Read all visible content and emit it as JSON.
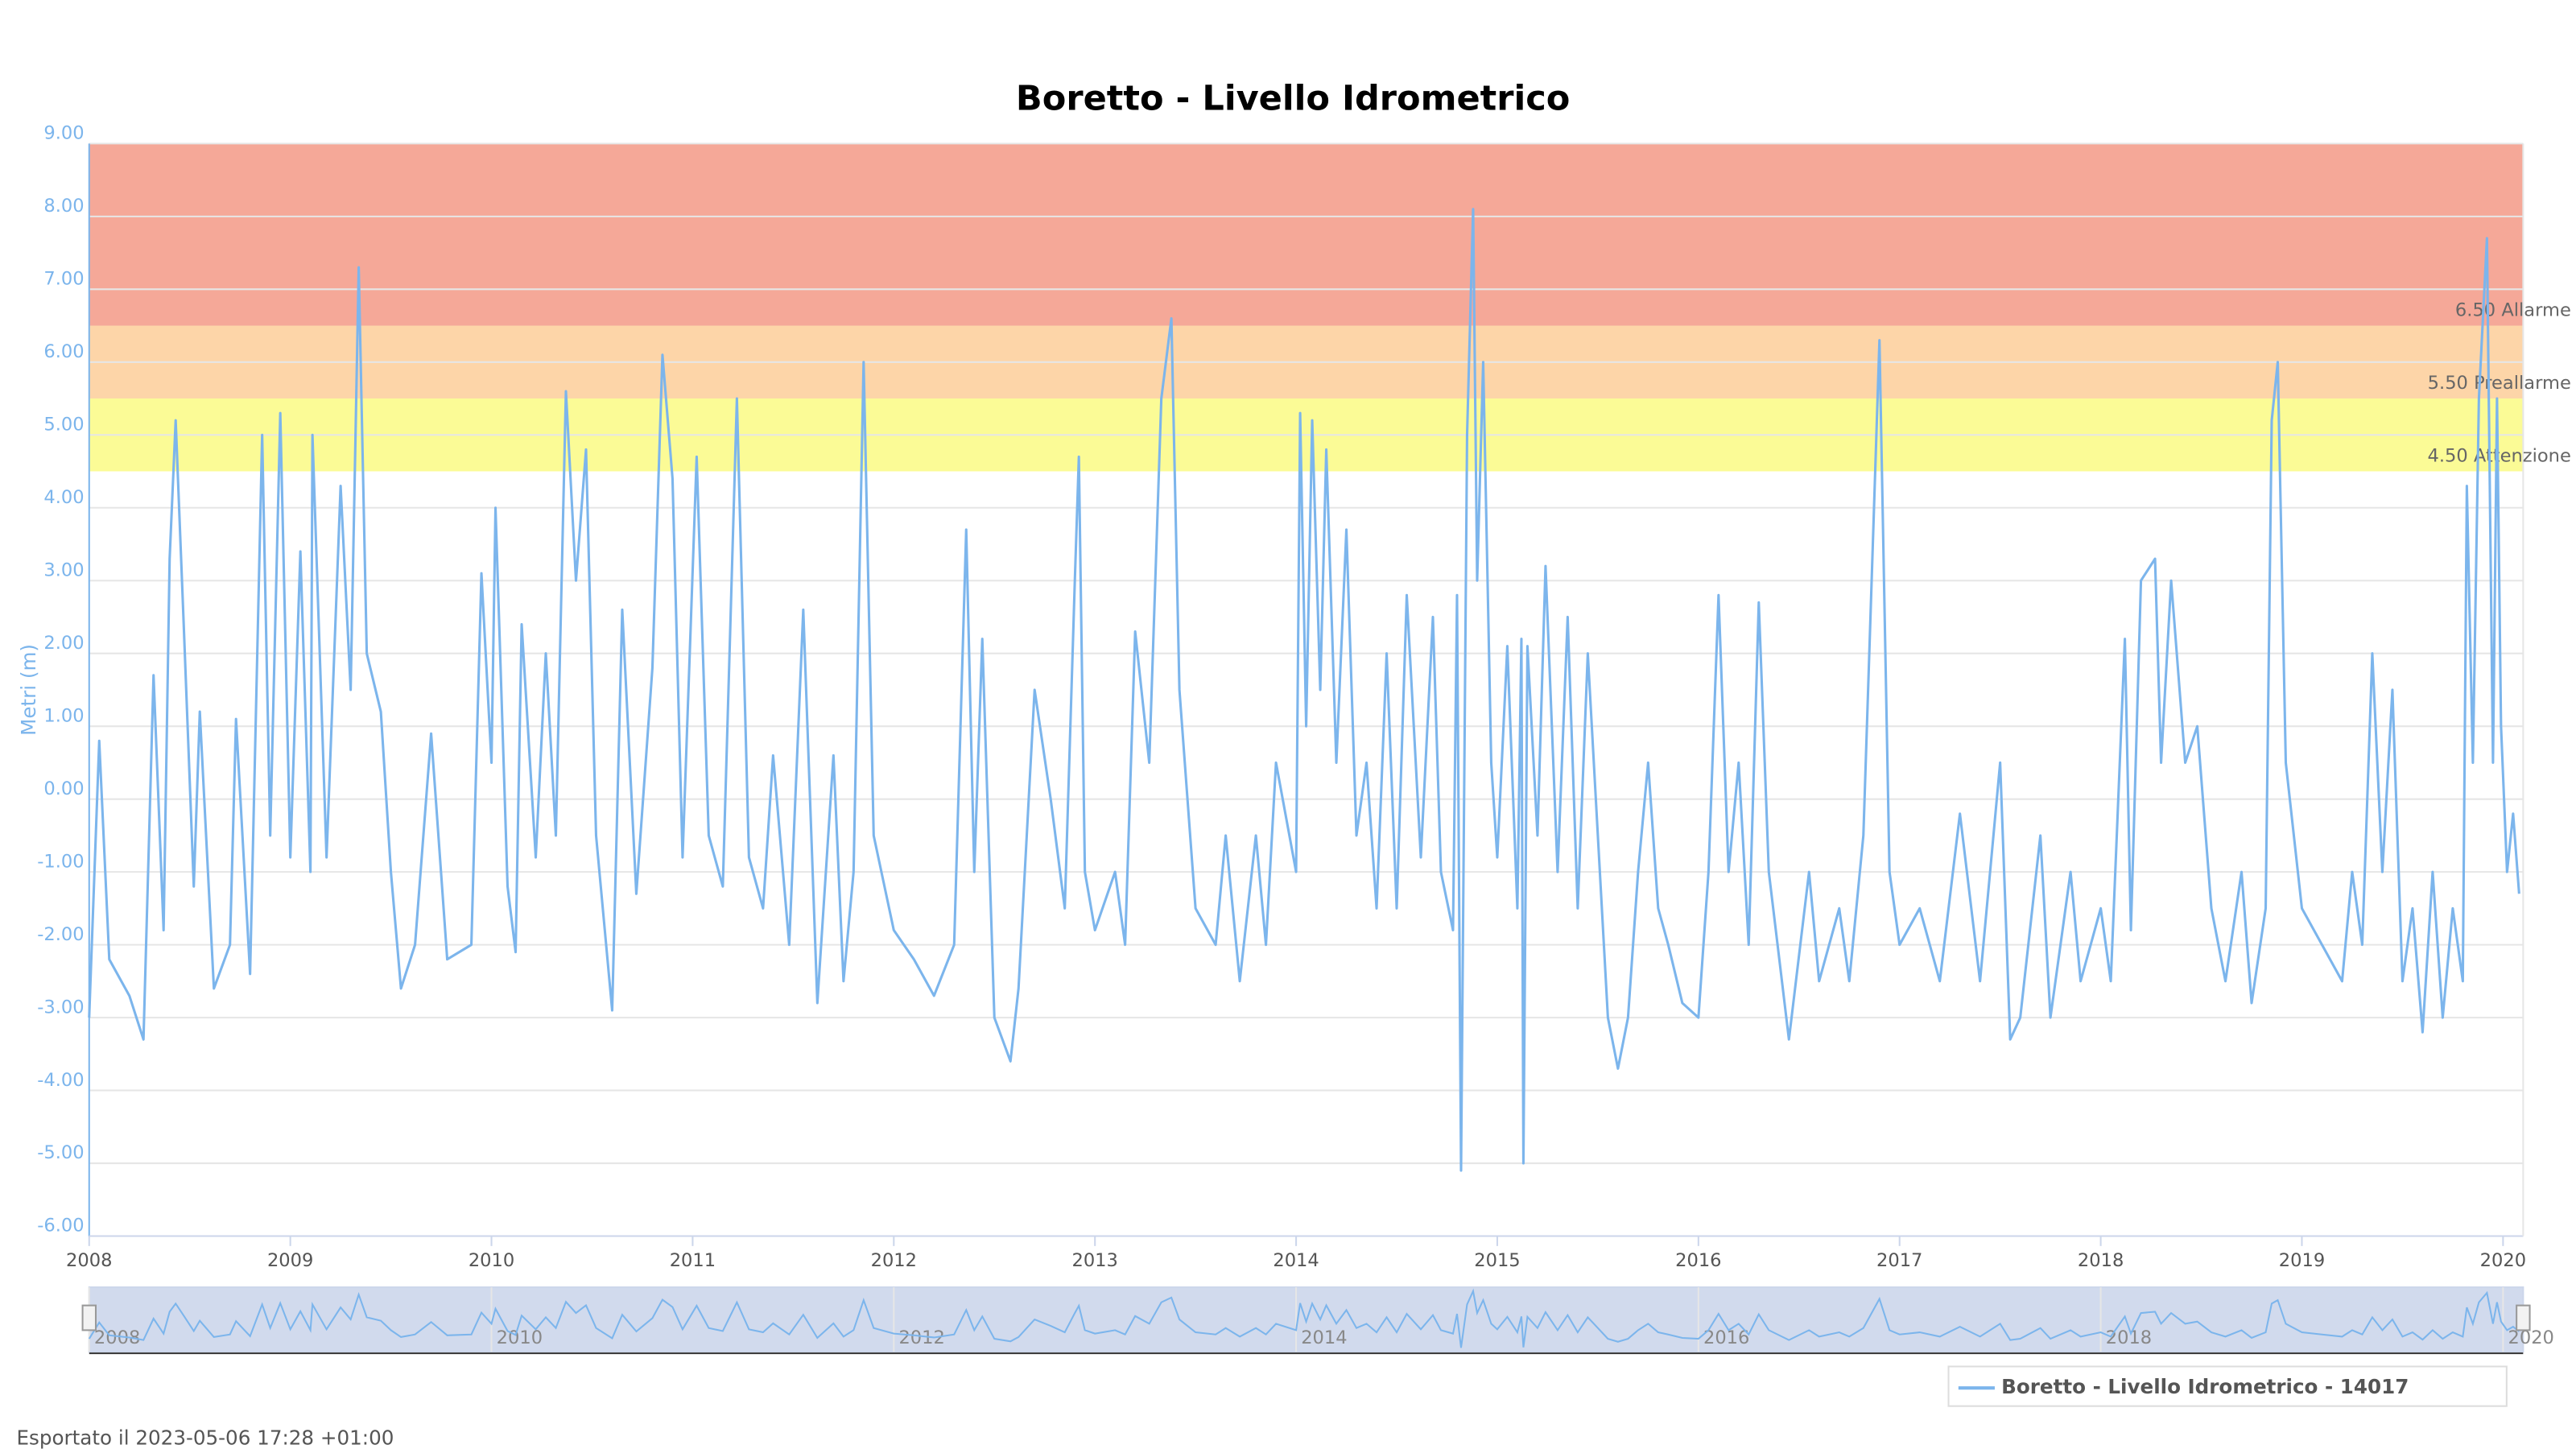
{
  "chart_data": {
    "type": "line",
    "title": "Boretto - Livello Idrometrico",
    "y_label": "Metri (m)",
    "x": [
      2008,
      2008.05,
      2008.1,
      2008.2,
      2008.27,
      2008.32,
      2008.37,
      2008.4,
      2008.43,
      2008.47,
      2008.52,
      2008.55,
      2008.62,
      2008.7,
      2008.73,
      2008.8,
      2008.86,
      2008.9,
      2008.95,
      2009,
      2009.05,
      2009.1,
      2009.11,
      2009.18,
      2009.25,
      2009.3,
      2009.34,
      2009.38,
      2009.45,
      2009.5,
      2009.55,
      2009.62,
      2009.7,
      2009.78,
      2009.9,
      2009.95,
      2010,
      2010.02,
      2010.08,
      2010.12,
      2010.15,
      2010.22,
      2010.27,
      2010.32,
      2010.37,
      2010.42,
      2010.47,
      2010.52,
      2010.6,
      2010.65,
      2010.72,
      2010.8,
      2010.85,
      2010.9,
      2010.95,
      2011.02,
      2011.08,
      2011.15,
      2011.22,
      2011.28,
      2011.35,
      2011.4,
      2011.48,
      2011.55,
      2011.62,
      2011.7,
      2011.75,
      2011.8,
      2011.85,
      2011.9,
      2012,
      2012.1,
      2012.2,
      2012.3,
      2012.36,
      2012.4,
      2012.44,
      2012.5,
      2012.58,
      2012.62,
      2012.7,
      2012.78,
      2012.85,
      2012.9,
      2012.92,
      2012.95,
      2013,
      2013.1,
      2013.15,
      2013.2,
      2013.27,
      2013.33,
      2013.38,
      2013.42,
      2013.5,
      2013.6,
      2013.65,
      2013.72,
      2013.8,
      2013.85,
      2013.9,
      2014,
      2014.02,
      2014.05,
      2014.08,
      2014.12,
      2014.15,
      2014.2,
      2014.25,
      2014.3,
      2014.35,
      2014.4,
      2014.45,
      2014.5,
      2014.55,
      2014.62,
      2014.68,
      2014.72,
      2014.78,
      2014.8,
      2014.82,
      2014.85,
      2014.88,
      2014.9,
      2014.93,
      2014.97,
      2015,
      2015.05,
      2015.1,
      2015.12,
      2015.13,
      2015.15,
      2015.2,
      2015.24,
      2015.3,
      2015.35,
      2015.4,
      2015.45,
      2015.5,
      2015.55,
      2015.6,
      2015.65,
      2015.7,
      2015.75,
      2015.8,
      2015.85,
      2015.92,
      2016,
      2016.05,
      2016.1,
      2016.15,
      2016.2,
      2016.25,
      2016.3,
      2016.35,
      2016.45,
      2016.55,
      2016.6,
      2016.7,
      2016.75,
      2016.82,
      2016.9,
      2016.95,
      2017,
      2017.1,
      2017.2,
      2017.3,
      2017.4,
      2017.5,
      2017.55,
      2017.6,
      2017.7,
      2017.75,
      2017.85,
      2017.9,
      2018,
      2018.05,
      2018.12,
      2018.15,
      2018.2,
      2018.27,
      2018.3,
      2018.35,
      2018.42,
      2018.48,
      2018.55,
      2018.62,
      2018.7,
      2018.75,
      2018.82,
      2018.85,
      2018.88,
      2018.92,
      2019,
      2019.1,
      2019.2,
      2019.25,
      2019.3,
      2019.35,
      2019.4,
      2019.45,
      2019.5,
      2019.55,
      2019.6,
      2019.65,
      2019.7,
      2019.75,
      2019.8,
      2019.82,
      2019.85,
      2019.88,
      2019.92,
      2019.95,
      2019.97,
      2019.99,
      2020.02,
      2020.05,
      2020.08
    ],
    "series": [
      {
        "name": "Boretto - Livello Idrometrico - 14017",
        "color": "#7cb5ec",
        "values": [
          -3.0,
          0.8,
          -2.2,
          -2.7,
          -3.3,
          1.7,
          -1.8,
          3.3,
          5.2,
          2.4,
          -1.2,
          1.2,
          -2.6,
          -2.0,
          1.1,
          -2.4,
          5.0,
          -0.5,
          5.3,
          -0.8,
          3.4,
          -1.0,
          5.0,
          -0.8,
          4.3,
          1.5,
          7.3,
          2.0,
          1.2,
          -1.0,
          -2.6,
          -2.0,
          0.9,
          -2.2,
          -2.0,
          3.1,
          0.5,
          4.0,
          -1.2,
          -2.1,
          2.4,
          -0.8,
          2.0,
          -0.5,
          5.6,
          3.0,
          4.8,
          -0.5,
          -2.9,
          2.6,
          -1.3,
          1.8,
          6.1,
          4.4,
          -0.8,
          4.7,
          -0.5,
          -1.2,
          5.5,
          -0.8,
          -1.5,
          0.6,
          -2.0,
          2.6,
          -2.8,
          0.6,
          -2.5,
          -1.0,
          6.0,
          -0.5,
          -1.8,
          -2.2,
          -2.7,
          -2.0,
          3.7,
          -1.0,
          2.2,
          -3.0,
          -3.6,
          -2.6,
          1.5,
          0,
          -1.5,
          3.0,
          4.7,
          -1.0,
          -1.8,
          -1.0,
          -2.0,
          2.3,
          0.5,
          5.5,
          6.6,
          1.5,
          -1.5,
          -2.0,
          -0.5,
          -2.5,
          -0.5,
          -2.0,
          0.5,
          -1.0,
          5.3,
          1.0,
          5.2,
          1.5,
          4.8,
          0.5,
          3.7,
          -0.5,
          0.5,
          -1.5,
          2.0,
          -1.5,
          2.8,
          -0.8,
          2.5,
          -1.0,
          -1.8,
          2.8,
          -5.1,
          5.0,
          8.1,
          3.0,
          6.0,
          0.5,
          -0.8,
          2.1,
          -1.5,
          2.2,
          -5.0,
          2.1,
          -0.5,
          3.2,
          -1.0,
          2.5,
          -1.5,
          2.0,
          -0.5,
          -3.0,
          -3.7,
          -3.0,
          -1.0,
          0.5,
          -1.5,
          -2.0,
          -2.8,
          -3.0,
          -1.0,
          2.8,
          -1.0,
          0.5,
          -2.0,
          2.7,
          -1.0,
          -3.3,
          -1.0,
          -2.5,
          -1.5,
          -2.5,
          -0.5,
          6.3,
          -1.0,
          -2.0,
          -1.5,
          -2.5,
          -0.2,
          -2.5,
          0.5,
          -3.3,
          -3.0,
          -0.5,
          -3.0,
          -1.0,
          -2.5,
          -1.5,
          -2.5,
          2.2,
          -1.8,
          3.0,
          3.3,
          0.5,
          3.0,
          0.5,
          1.0,
          -1.5,
          -2.5,
          -1.0,
          -2.8,
          -1.5,
          5.2,
          6.0,
          0.5,
          -1.5,
          -2.0,
          -2.5,
          -1.0,
          -2.0,
          2.0,
          -1.0,
          1.5,
          -2.5,
          -1.5,
          -3.2,
          -1.0,
          -3.0,
          -1.5,
          -2.5,
          4.3,
          0.5,
          5.5,
          7.7,
          0.5,
          5.5,
          1.0,
          -1.0,
          -0.2,
          -1.3
        ]
      }
    ],
    "xlim": [
      2008,
      2020.1
    ],
    "xticks": [
      2008,
      2009,
      2010,
      2011,
      2012,
      2013,
      2014,
      2015,
      2016,
      2017,
      2018,
      2019,
      2020
    ],
    "ylim": [
      -6,
      9
    ],
    "yticks": [
      {
        "value": -6,
        "label": "-6.00"
      },
      {
        "value": -5,
        "label": "-5.00"
      },
      {
        "value": -4,
        "label": "-4.00"
      },
      {
        "value": -3,
        "label": "-3.00"
      },
      {
        "value": -2,
        "label": "-2.00"
      },
      {
        "value": -1,
        "label": "-1.00"
      },
      {
        "value": 0,
        "label": "0.00"
      },
      {
        "value": 1,
        "label": "1.00"
      },
      {
        "value": 2,
        "label": "2.00"
      },
      {
        "value": 3,
        "label": "3.00"
      },
      {
        "value": 4,
        "label": "4.00"
      },
      {
        "value": 5,
        "label": "5.00"
      },
      {
        "value": 6,
        "label": "6.00"
      },
      {
        "value": 7,
        "label": "7.00"
      },
      {
        "value": 8,
        "label": "8.00"
      },
      {
        "value": 9,
        "label": "9.00"
      }
    ],
    "grid": true,
    "thresholds": [
      {
        "value": 4.5,
        "label": "4.50 Attenzione",
        "color": "#fbfb96"
      },
      {
        "value": 5.5,
        "label": "5.50 Preallarme",
        "color": "#fdd5a8"
      },
      {
        "value": 6.5,
        "label": "6.50 Allarme",
        "color": "#f5a898"
      }
    ],
    "navigator_ticks": [
      2008,
      2010,
      2012,
      2014,
      2016,
      2018,
      2020
    ],
    "legend": "bottom-right",
    "footer": "Esportato il 2023-05-06 17:28 +01:00"
  }
}
